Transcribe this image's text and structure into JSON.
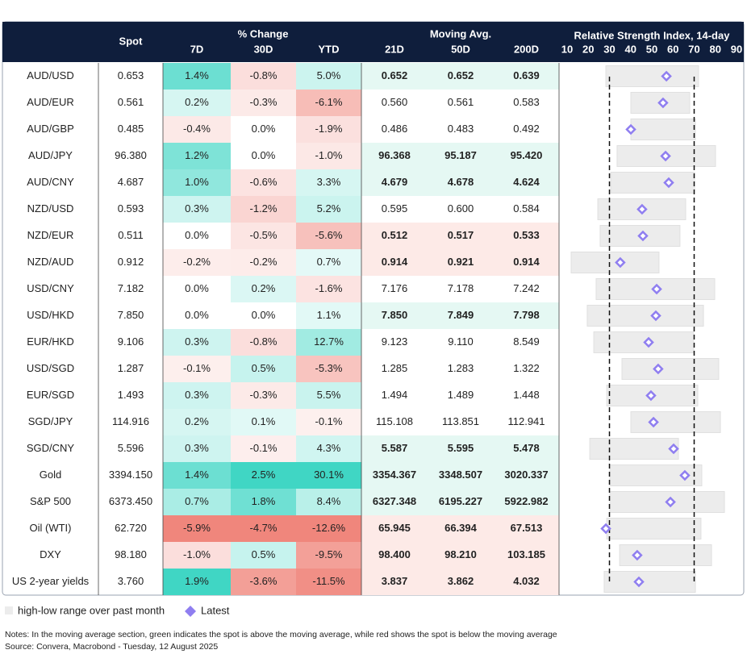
{
  "header": {
    "spot": "Spot",
    "pct_change": "% Change",
    "moving_avg": "Moving Avg.",
    "rsi": "Relative Strength Index, 14-day",
    "columns": [
      "7D",
      "30D",
      "YTD",
      "21D",
      "50D",
      "200D"
    ]
  },
  "rows": [
    [
      "AUD/USD",
      "0.653",
      "1.4%",
      "-0.8%",
      "5.0%",
      "0.652",
      "0.652",
      "0.639"
    ],
    [
      "AUD/EUR",
      "0.561",
      "0.2%",
      "-0.3%",
      "-6.1%",
      "0.560",
      "0.561",
      "0.583"
    ],
    [
      "AUD/GBP",
      "0.485",
      "-0.4%",
      "0.0%",
      "-1.9%",
      "0.486",
      "0.483",
      "0.492"
    ],
    [
      "AUD/JPY",
      "96.380",
      "1.2%",
      "0.0%",
      "-1.0%",
      "96.368",
      "95.187",
      "95.420"
    ],
    [
      "AUD/CNY",
      "4.687",
      "1.0%",
      "-0.6%",
      "3.3%",
      "4.679",
      "4.678",
      "4.624"
    ],
    [
      "NZD/USD",
      "0.593",
      "0.3%",
      "-1.2%",
      "5.2%",
      "0.595",
      "0.600",
      "0.584"
    ],
    [
      "NZD/EUR",
      "0.511",
      "0.0%",
      "-0.5%",
      "-5.6%",
      "0.512",
      "0.517",
      "0.533"
    ],
    [
      "NZD/AUD",
      "0.912",
      "-0.2%",
      "-0.2%",
      "0.7%",
      "0.914",
      "0.921",
      "0.914"
    ],
    [
      "USD/CNY",
      "7.182",
      "0.0%",
      "0.2%",
      "-1.6%",
      "7.176",
      "7.178",
      "7.242"
    ],
    [
      "USD/HKD",
      "7.850",
      "0.0%",
      "0.0%",
      "1.1%",
      "7.850",
      "7.849",
      "7.798"
    ],
    [
      "EUR/HKD",
      "9.106",
      "0.3%",
      "-0.8%",
      "12.7%",
      "9.123",
      "9.110",
      "8.549"
    ],
    [
      "USD/SGD",
      "1.287",
      "-0.1%",
      "0.5%",
      "-5.3%",
      "1.285",
      "1.283",
      "1.322"
    ],
    [
      "EUR/SGD",
      "1.493",
      "0.3%",
      "-0.3%",
      "5.5%",
      "1.494",
      "1.489",
      "1.448"
    ],
    [
      "SGD/JPY",
      "114.916",
      "0.2%",
      "0.1%",
      "-0.1%",
      "115.108",
      "113.851",
      "112.941"
    ],
    [
      "SGD/CNY",
      "5.596",
      "0.3%",
      "-0.1%",
      "4.3%",
      "5.587",
      "5.595",
      "5.478"
    ],
    [
      "Gold",
      "3394.150",
      "1.4%",
      "2.5%",
      "30.1%",
      "3354.367",
      "3348.507",
      "3020.337"
    ],
    [
      "S&P 500",
      "6373.450",
      "0.7%",
      "1.8%",
      "8.4%",
      "6327.348",
      "6195.227",
      "5922.982"
    ],
    [
      "Oil (WTI)",
      "62.720",
      "-5.9%",
      "-4.7%",
      "-12.6%",
      "65.945",
      "66.394",
      "67.513"
    ],
    [
      "DXY",
      "98.180",
      "-1.0%",
      "0.5%",
      "-9.5%",
      "98.400",
      "98.210",
      "103.185"
    ],
    [
      "US 2-year yields",
      "3.760",
      "1.9%",
      "-3.6%",
      "-11.5%",
      "3.837",
      "3.862",
      "4.032"
    ]
  ],
  "rsi_chart": {
    "xlim": [
      10,
      90
    ],
    "xticks": [
      10,
      20,
      30,
      40,
      50,
      60,
      70,
      80,
      90
    ],
    "reference_lines": [
      30,
      70
    ],
    "range_color": "#ececec",
    "latest_color": "#8f7ef0",
    "low": [
      28.3,
      40.1,
      40.1,
      33.6,
      30.6,
      24.5,
      25.6,
      11.9,
      23.7,
      19.5,
      22.6,
      35.9,
      28.7,
      40.1,
      20.7,
      30.2,
      30.2,
      28.7,
      34.8,
      27.5
    ],
    "high": [
      72.1,
      67.9,
      70.6,
      80.1,
      70.2,
      66.0,
      63.3,
      53.4,
      79.7,
      74.4,
      69.8,
      81.6,
      71.7,
      82.4,
      62.6,
      73.6,
      84.3,
      73.2,
      78.2,
      70.6
    ],
    "latest": [
      56.9,
      55.3,
      40.1,
      56.5,
      58.0,
      45.4,
      45.8,
      35.1,
      52.3,
      51.9,
      48.5,
      53.0,
      49.6,
      50.8,
      60.3,
      65.6,
      58.8,
      28.3,
      43.1,
      43.9
    ]
  },
  "legend": {
    "range": "high-low range over past month",
    "latest": "Latest"
  },
  "notes": "Notes: In the moving average section, green indicates the spot is above the moving average, while red shows the spot is below the moving average",
  "source": "Source: Convera, Macrobond - Tuesday, 12 August 2025"
}
